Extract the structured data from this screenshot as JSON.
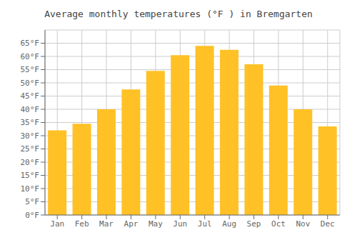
{
  "chart_data": {
    "type": "bar",
    "title": "Average monthly temperatures (°F ) in Bremgarten",
    "categories": [
      "Jan",
      "Feb",
      "Mar",
      "Apr",
      "May",
      "Jun",
      "Jul",
      "Aug",
      "Sep",
      "Oct",
      "Nov",
      "Dec"
    ],
    "values": [
      32,
      34.5,
      40,
      47.5,
      54.5,
      60.5,
      64,
      62.5,
      57,
      49,
      40,
      33.5
    ],
    "color": "#FFC125",
    "ylim": [
      0,
      70
    ],
    "yticks": [
      {
        "value": 0,
        "label": "0°F"
      },
      {
        "value": 5,
        "label": "5°F"
      },
      {
        "value": 10,
        "label": "10°F"
      },
      {
        "value": 15,
        "label": "15°F"
      },
      {
        "value": 20,
        "label": "20°F"
      },
      {
        "value": 25,
        "label": "25°F"
      },
      {
        "value": 30,
        "label": "30°F"
      },
      {
        "value": 35,
        "label": "35°F"
      },
      {
        "value": 40,
        "label": "40°F"
      },
      {
        "value": 45,
        "label": "45°F"
      },
      {
        "value": 50,
        "label": "50°F"
      },
      {
        "value": 55,
        "label": "55°F"
      },
      {
        "value": 60,
        "label": "60°F"
      },
      {
        "value": 65,
        "label": "65°F"
      }
    ],
    "grid": true
  }
}
